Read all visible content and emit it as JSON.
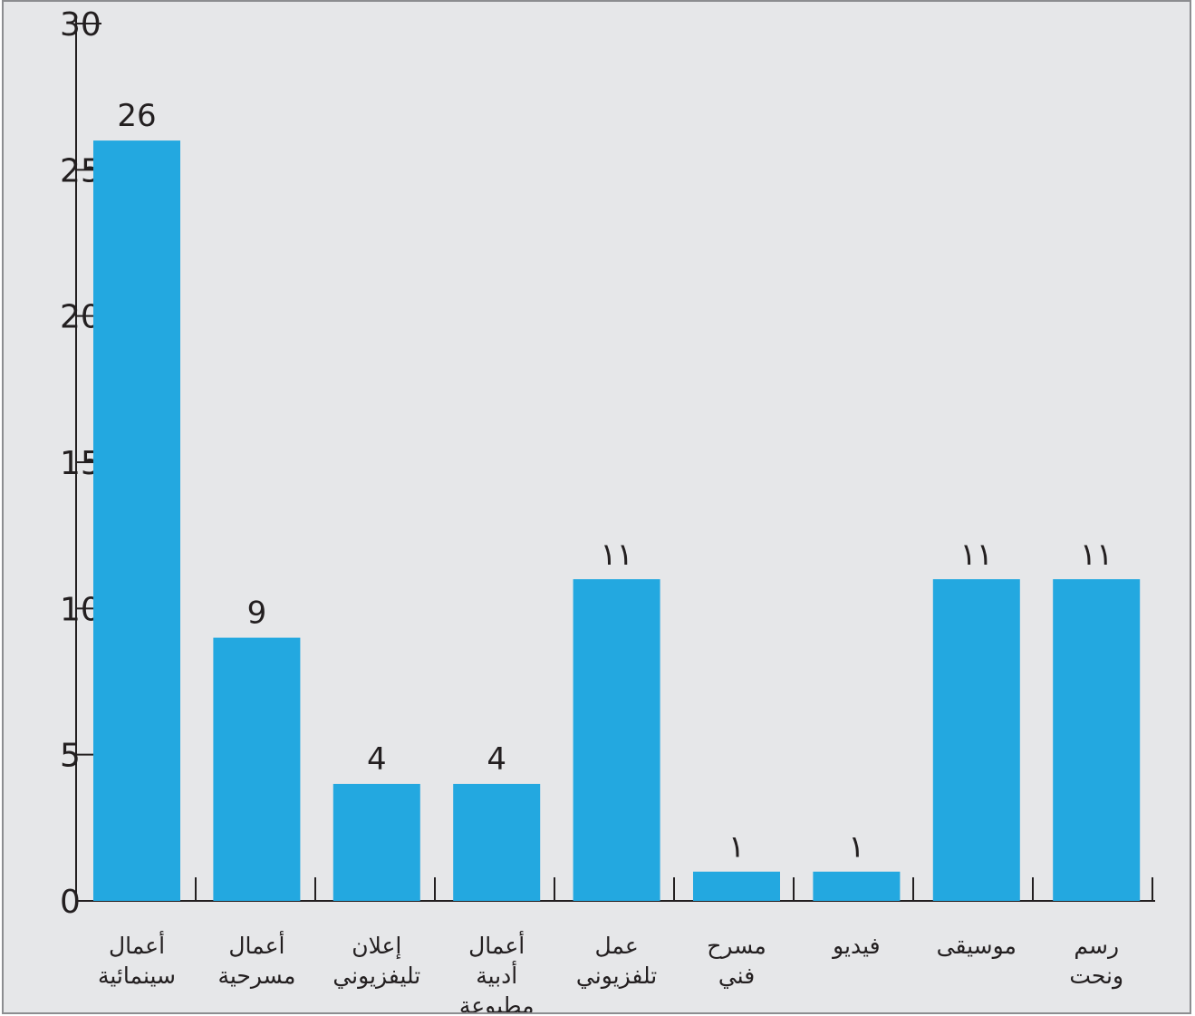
{
  "chart_data": {
    "type": "bar",
    "title": "",
    "xlabel": "",
    "ylabel": "",
    "ylim": [
      0,
      30
    ],
    "yticks": [
      0,
      5,
      10,
      15,
      20,
      25,
      30
    ],
    "grid": false,
    "legend": "none",
    "bar_color": "#23a8e0",
    "categories": [
      [
        "أعمال",
        "سينمائية"
      ],
      [
        "أعمال",
        "مسرحية"
      ],
      [
        "إعلان",
        "تليفزيوني"
      ],
      [
        "أعمال",
        "أدبية",
        "مطبوعة"
      ],
      [
        "عمل",
        "تلفزيوني"
      ],
      [
        "مسرح",
        "فني"
      ],
      [
        "فيديو"
      ],
      [
        "موسيقى"
      ],
      [
        "رسم",
        "ونحت"
      ]
    ],
    "values": [
      26,
      9,
      4,
      4,
      11,
      1,
      1,
      11,
      11
    ],
    "value_labels": [
      "26",
      "9",
      "4",
      "4",
      "١١",
      "١",
      "١",
      "١١",
      "١١"
    ]
  }
}
